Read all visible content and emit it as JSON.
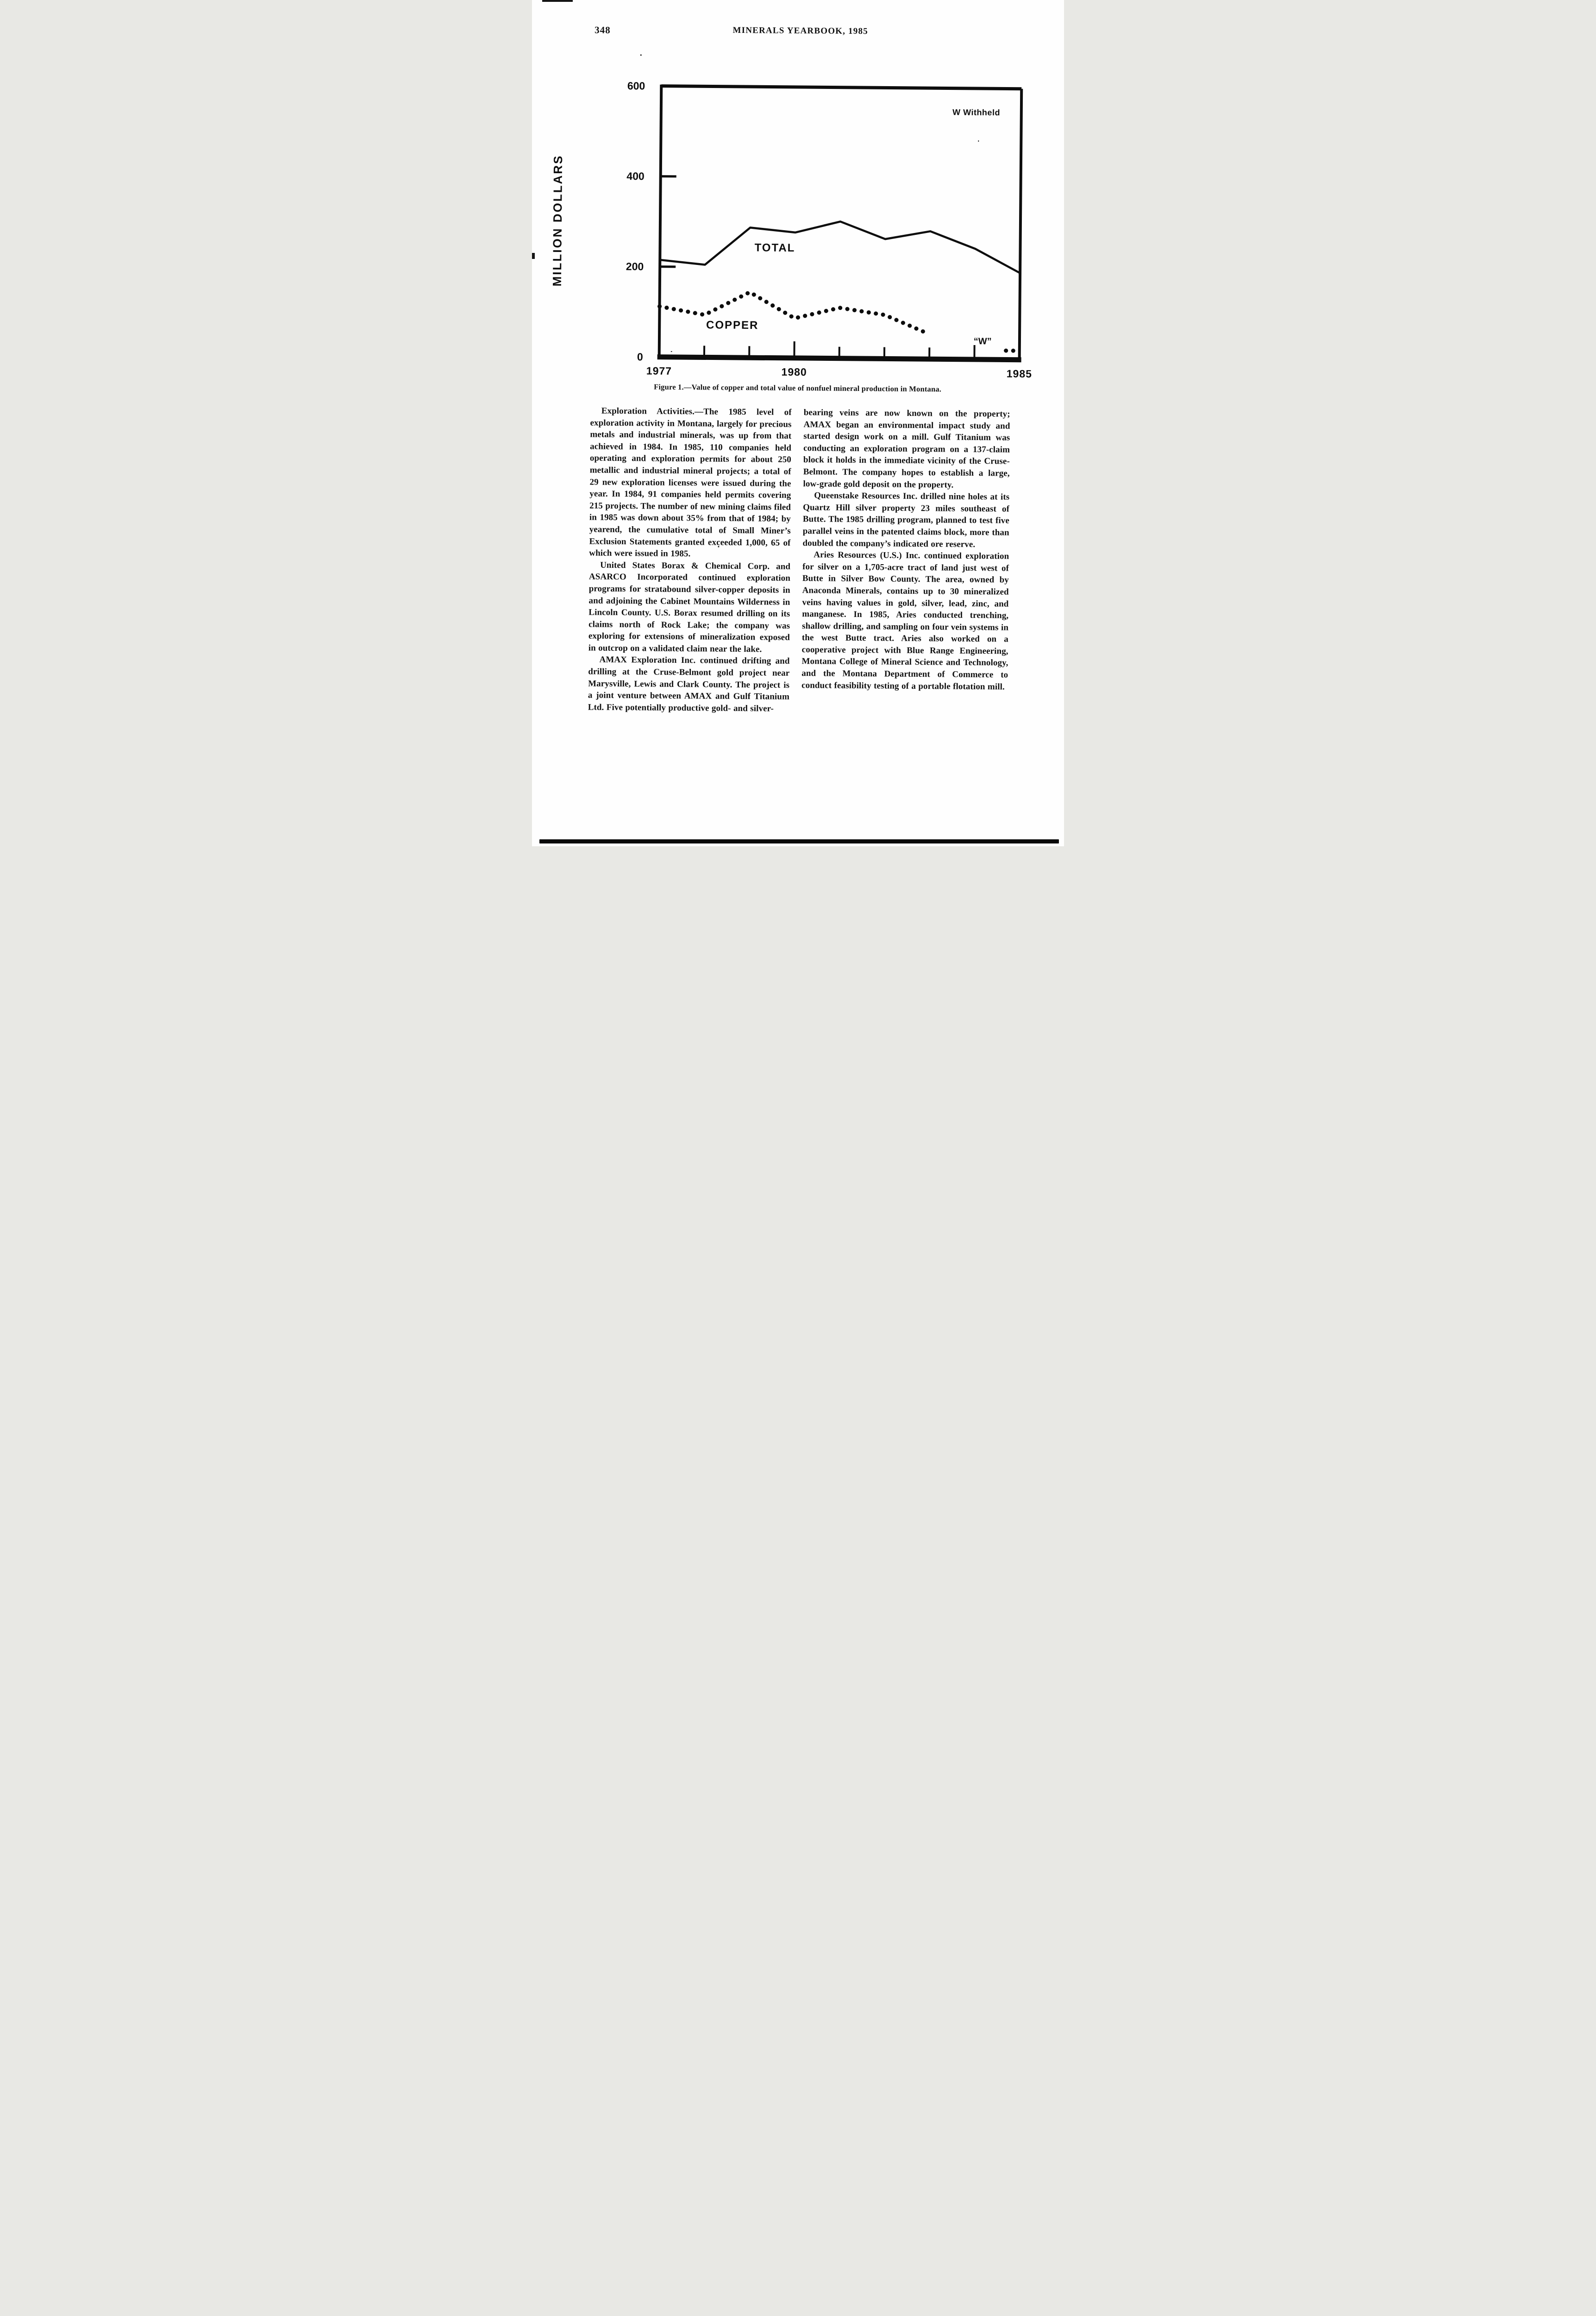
{
  "page": {
    "page_number": "348",
    "header_title": "MINERALS YEARBOOK, 1985"
  },
  "figure": {
    "caption": "Figure 1.—Value of copper and total value of nonfuel mineral production in Montana."
  },
  "chart_data": {
    "type": "line",
    "title": "Value of copper and total value of nonfuel mineral production in Montana",
    "ylabel": "MILLION DOLLARS",
    "xlabel": "",
    "x": [
      1977,
      1978,
      1979,
      1980,
      1981,
      1982,
      1983,
      1984,
      1985
    ],
    "series": [
      {
        "name": "TOTAL",
        "style": "solid",
        "values": [
          215,
          205,
          288,
          278,
          303,
          265,
          283,
          245,
          192
        ]
      },
      {
        "name": "COPPER",
        "style": "dotted",
        "values": [
          112,
          94,
          145,
          88,
          112,
          97,
          55,
          "W",
          20
        ]
      }
    ],
    "ylim": [
      0,
      600
    ],
    "y_tick_values": [
      0,
      200,
      400,
      600
    ],
    "x_tick_labeled": [
      1977,
      1980,
      1985
    ],
    "grid": false,
    "legend_position": "inline-labels",
    "annotations": [
      {
        "text": "W Withheld",
        "x": 1984.0,
        "y": 548,
        "kind": "note",
        "name": "withheld-note"
      },
      {
        "text": "TOTAL",
        "x": 1979.55,
        "y": 243,
        "kind": "series-label",
        "name": "total-label"
      },
      {
        "text": "COPPER",
        "x": 1978.62,
        "y": 71,
        "kind": "series-label",
        "name": "copper-label"
      },
      {
        "text": "“W”",
        "x": 1984.18,
        "y": 41,
        "kind": "symbol",
        "name": "w-symbol"
      }
    ],
    "notes": "W = value withheld; copper series interrupted for 1984"
  },
  "columns": {
    "left": [
      {
        "lead": "Exploration Activities.—",
        "text": "The 1985 level of exploration activity in Montana, largely for precious metals and industrial minerals, was up from that achieved in 1984. In 1985, 110 companies held operating and exploration permits for about 250 metallic and industrial mineral projects; a total of 29 new exploration licenses were issued during the year. In 1984, 91 companies held permits covering 215 projects. The number of new mining claims filed in 1985 was down about 35% from that of 1984; by yearend, the cumulative total of Small Miner’s Exclusion Statements granted exceeded 1,000, 65 of which were issued in 1985."
      },
      {
        "text": "United States Borax & Chemical Corp. and ASARCO Incorporated continued exploration programs for stratabound silver-copper deposits in and adjoining the Cabinet Mountains Wilderness in Lincoln County. U.S. Borax resumed drilling on its claims north of Rock Lake; the company was exploring for extensions of mineralization exposed in outcrop on a validated claim near the lake."
      },
      {
        "text": "AMAX Exploration Inc. continued drifting and drilling at the Cruse-Belmont gold project near Marysville, Lewis and Clark County. The project is a joint venture between AMAX and Gulf Titanium Ltd. Five potentially productive gold- and silver-"
      }
    ],
    "right": [
      {
        "text": "bearing veins are now known on the property; AMAX began an environmental impact study and started design work on a mill. Gulf Titanium was conducting an exploration program on a 137-claim block it holds in the immediate vicinity of the Cruse-Belmont. The company hopes to establish a large, low-grade gold deposit on the property."
      },
      {
        "text": "Queenstake Resources Inc. drilled nine holes at its Quartz Hill silver property 23 miles southeast of Butte. The 1985 drilling program, planned to test five parallel veins in the patented claims block, more than doubled the company’s indicated ore reserve."
      },
      {
        "text": "Aries Resources (U.S.) Inc. continued exploration for silver on a 1,705-acre tract of land just west of Butte in Silver Bow County. The area, owned by Anaconda Minerals, contains up to 30 mineralized veins having values in gold, silver, lead, zinc, and manganese. In 1985, Aries conducted trenching, shallow drilling, and sampling on four vein systems in the west Butte tract. Aries also worked on a cooperative project with Blue Range Engineering, Montana College of Mineral Science and Technology, and the Montana Department of Commerce to conduct feasibility testing of a portable flotation mill."
      }
    ]
  }
}
